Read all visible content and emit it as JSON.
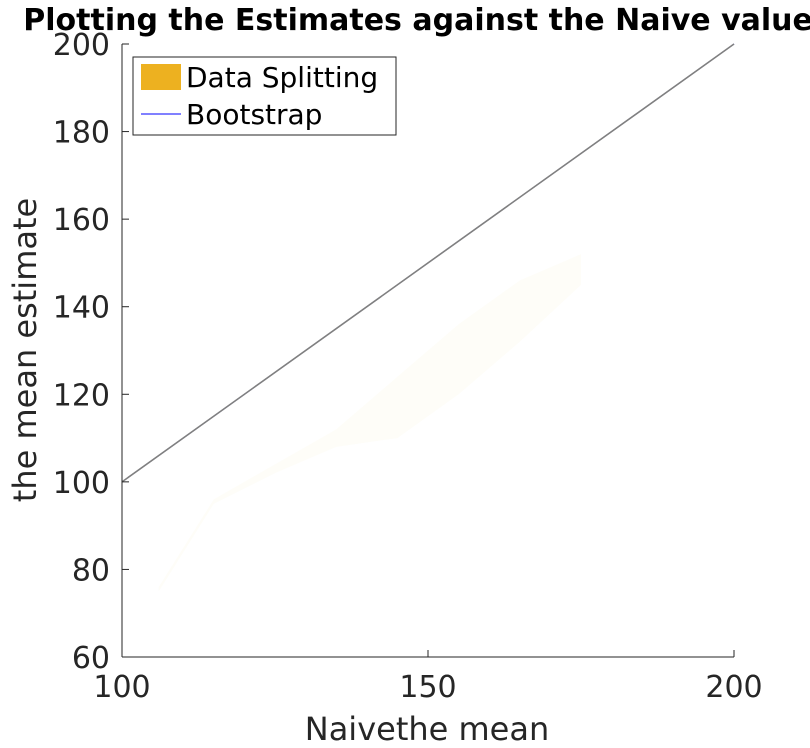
{
  "chart_data": {
    "type": "line",
    "title": "Plotting the Estimates against the Naive values",
    "xlabel": "Naivethe mean",
    "ylabel": "the mean estimate",
    "xlim": [
      100,
      200
    ],
    "ylim": [
      60,
      200
    ],
    "xticks": [
      100,
      150,
      200
    ],
    "yticks": [
      60,
      80,
      100,
      120,
      140,
      160,
      180,
      200
    ],
    "xtick_labels": [
      "100",
      "150",
      "200"
    ],
    "ytick_labels": [
      "60",
      "80",
      "100",
      "120",
      "140",
      "160",
      "180",
      "200"
    ],
    "grid": false,
    "legend_position": "top-left",
    "series": [
      {
        "name": "Data Splitting",
        "kind": "band",
        "color": "#EDB120",
        "x": [
          106,
          115,
          125,
          135,
          145,
          155,
          165,
          175
        ],
        "lower": [
          75,
          95,
          102,
          108,
          110,
          120,
          132,
          145
        ],
        "upper": [
          76,
          96,
          104,
          112,
          124,
          136,
          146,
          152
        ]
      },
      {
        "name": "Bootstrap",
        "kind": "line",
        "color": "#0000FF",
        "x": [
          100,
          200
        ],
        "y": [
          100,
          200
        ]
      },
      {
        "name": "",
        "kind": "reference",
        "color": "#808080",
        "x": [
          100,
          200
        ],
        "y": [
          100,
          200
        ]
      }
    ]
  }
}
